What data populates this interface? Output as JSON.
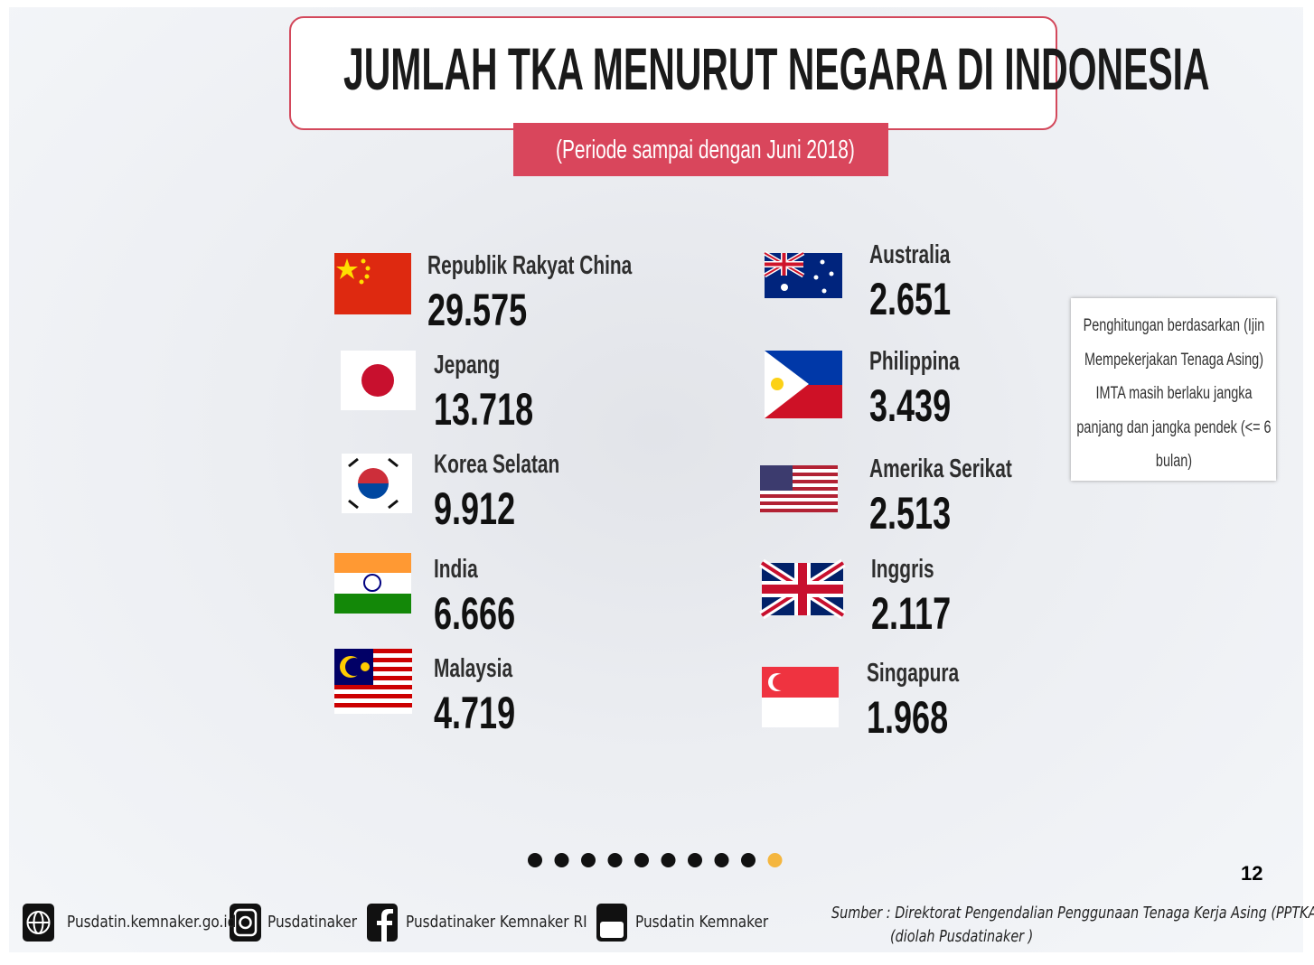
{
  "title": "JUMLAH TKA MENURUT NEGARA DI INDONESIA",
  "subtitle": "(Periode sampai dengan Juni 2018)",
  "countries_left": [
    {
      "name": "Republik Rakyat China",
      "value": "29.575"
    },
    {
      "name": "Jepang",
      "value": "13.718"
    },
    {
      "name": "Korea Selatan",
      "value": "9.912"
    },
    {
      "name": "India",
      "value": "6.666"
    },
    {
      "name": "Malaysia",
      "value": "4.719"
    }
  ],
  "countries_right": [
    {
      "name": "Australia",
      "value": "2.651"
    },
    {
      "name": "Philippina",
      "value": "3.439"
    },
    {
      "name": "Amerika Serikat",
      "value": "2.513"
    },
    {
      "name": "Inggris",
      "value": "2.117"
    },
    {
      "name": "Singapura",
      "value": "1.968"
    }
  ],
  "note": "Penghitungan berdasarkan (Ijin Mempekerjakan Tenaga Asing) IMTA masih berlaku jangka panjang dan jangka pendek (<= 6 bulan)",
  "page_number": "12",
  "footer": {
    "links": [
      "Pusdatin.kemnaker.go.id",
      "Pusdatinaker",
      "Pusdatinaker  Kemnaker RI",
      "Pusdatin Kemnaker"
    ],
    "source": "Sumber : Direktorat Pengendalian Penggunaan Tenaga Kerja Asing (PPTKA)",
    "source_note": "(diolah Pusdatinaker )"
  }
}
